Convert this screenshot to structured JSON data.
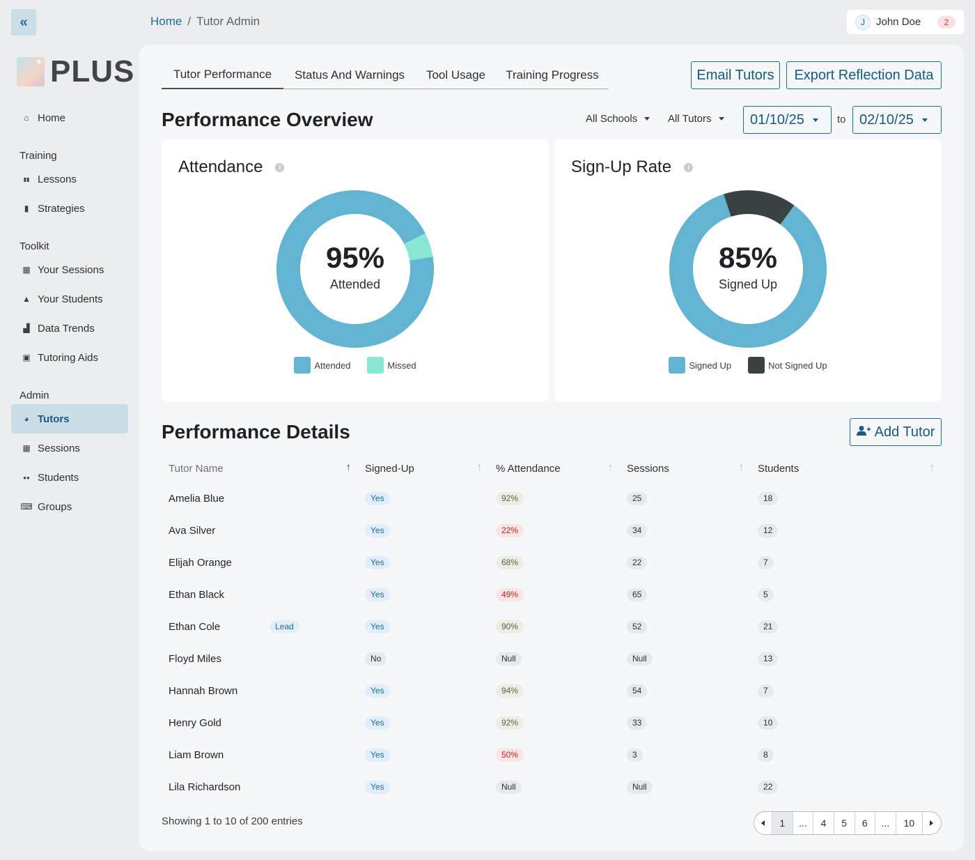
{
  "app": {
    "logo_text": "PLUS"
  },
  "breadcrumb": {
    "home": "Home",
    "separator": "/",
    "current": "Tutor Admin"
  },
  "user": {
    "initial": "J",
    "name": "John Doe",
    "notifications": "2"
  },
  "sidebar": {
    "collapse_icon": "chevrons-left-icon",
    "home": {
      "label": "Home",
      "icon": "home-icon"
    },
    "sections": [
      {
        "title": "Training",
        "items": [
          {
            "label": "Lessons",
            "icon": "book-icon"
          },
          {
            "label": "Strategies",
            "icon": "clipboard-icon"
          }
        ]
      },
      {
        "title": "Toolkit",
        "items": [
          {
            "label": "Your Sessions",
            "icon": "calendar-icon"
          },
          {
            "label": "Your Students",
            "icon": "graduation-cap-icon"
          },
          {
            "label": "Data Trends",
            "icon": "bar-chart-icon"
          },
          {
            "label": "Tutoring Aids",
            "icon": "toolbox-icon"
          }
        ]
      },
      {
        "title": "Admin",
        "items": [
          {
            "label": "Tutors",
            "icon": "pie-chart-icon",
            "active": true
          },
          {
            "label": "Sessions",
            "icon": "calendar-icon"
          },
          {
            "label": "Students",
            "icon": "users-icon"
          },
          {
            "label": "Groups",
            "icon": "keyboard-icon"
          }
        ]
      }
    ]
  },
  "tabs": [
    "Tutor Performance",
    "Status And Warnings",
    "Tool Usage",
    "Training Progress"
  ],
  "actions": {
    "email": "Email Tutors",
    "export": "Export Reflection Data",
    "add_tutor": "Add Tutor"
  },
  "overview": {
    "title": "Performance Overview",
    "filter_schools": "All Schools",
    "filter_tutors": "All Tutors",
    "date_from": "01/10/25",
    "date_to_label": "to",
    "date_to": "02/10/25"
  },
  "attendance": {
    "title": "Attendance",
    "percent_text": "95%",
    "caption": "Attended",
    "legend": [
      "Attended",
      "Missed"
    ],
    "values": [
      95,
      5
    ],
    "colors": [
      "#62b4d0",
      "#86e8d2"
    ]
  },
  "signup": {
    "title": "Sign-Up Rate",
    "percent_text": "85%",
    "caption": "Signed Up",
    "legend": [
      "Signed Up",
      "Not Signed Up"
    ],
    "values": [
      85,
      15
    ],
    "colors": [
      "#62b4d0",
      "#3c4244"
    ]
  },
  "details": {
    "title": "Performance Details",
    "columns": [
      "Tutor Name",
      "Signed-Up",
      "% Attendance",
      "Sessions",
      "Students"
    ],
    "rows": [
      {
        "name": "Amelia Blue",
        "signed": "Yes",
        "attendance": "92%",
        "att_tone": "olive",
        "sessions": "25",
        "students": "18"
      },
      {
        "name": "Ava Silver",
        "signed": "Yes",
        "attendance": "22%",
        "att_tone": "red",
        "sessions": "34",
        "students": "12"
      },
      {
        "name": "Elijah Orange",
        "signed": "Yes",
        "attendance": "68%",
        "att_tone": "olive",
        "sessions": "22",
        "students": "7"
      },
      {
        "name": "Ethan Black",
        "signed": "Yes",
        "attendance": "49%",
        "att_tone": "red",
        "sessions": "65",
        "students": "5"
      },
      {
        "name": "Ethan Cole",
        "badge": "Lead",
        "signed": "Yes",
        "attendance": "90%",
        "att_tone": "olive",
        "sessions": "52",
        "students": "21"
      },
      {
        "name": "Floyd Miles",
        "signed": "No",
        "attendance": "Null",
        "att_tone": "gray",
        "sessions": "Null",
        "students": "13"
      },
      {
        "name": "Hannah Brown",
        "signed": "Yes",
        "attendance": "94%",
        "att_tone": "olive",
        "sessions": "54",
        "students": "7"
      },
      {
        "name": "Henry Gold",
        "signed": "Yes",
        "attendance": "92%",
        "att_tone": "olive",
        "sessions": "33",
        "students": "10"
      },
      {
        "name": "Liam Brown",
        "signed": "Yes",
        "attendance": "50%",
        "att_tone": "red",
        "sessions": "3",
        "students": "8"
      },
      {
        "name": "Lila Richardson",
        "signed": "Yes",
        "attendance": "Null",
        "att_tone": "gray",
        "sessions": "Null",
        "students": "22"
      }
    ],
    "entries_text": "Showing 1 to 10 of 200 entries",
    "pages": [
      "1",
      "...",
      "4",
      "5",
      "6",
      "...",
      "10"
    ],
    "current_page": "1"
  }
}
